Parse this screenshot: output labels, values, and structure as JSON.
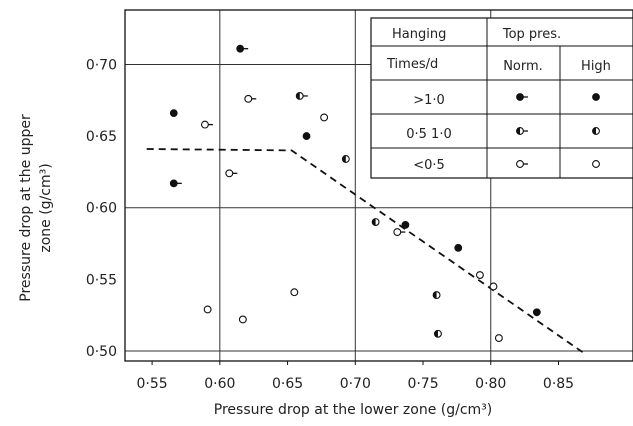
{
  "chart_data": {
    "type": "scatter",
    "title": "",
    "xlabel": "Pressure drop at the lower zone  (g/cm³)",
    "ylabel_line1": "Pressure drop at the upper",
    "ylabel_line2": "zone  (g/cm³)",
    "xlim": [
      0.53,
      0.905
    ],
    "ylim": [
      0.493,
      0.738
    ],
    "xticks": [
      {
        "v": 0.55,
        "label": "0·55"
      },
      {
        "v": 0.6,
        "label": "0·60"
      },
      {
        "v": 0.65,
        "label": "0·65"
      },
      {
        "v": 0.7,
        "label": "0·70"
      },
      {
        "v": 0.75,
        "label": "0·75"
      },
      {
        "v": 0.8,
        "label": "0·80"
      },
      {
        "v": 0.85,
        "label": "0·85"
      }
    ],
    "yticks": [
      {
        "v": 0.5,
        "label": "0·50"
      },
      {
        "v": 0.55,
        "label": "0·55"
      },
      {
        "v": 0.6,
        "label": "0·60"
      },
      {
        "v": 0.65,
        "label": "0·65"
      },
      {
        "v": 0.7,
        "label": "0·70"
      }
    ],
    "gridlines_y": [
      0.7,
      0.6,
      0.5
    ],
    "gridlines_x": [
      0.6,
      0.7,
      0.8
    ],
    "legend": {
      "header_left": "Hanging",
      "header_right": "Top  pres.",
      "subheader_left": "Times/d",
      "col_norm": "Norm.",
      "col_high": "High",
      "rows": [
        {
          "label": ">1·0",
          "norm": "filled-tick",
          "high": "filled"
        },
        {
          "label": "0·5  1·0",
          "norm": "half-tick",
          "high": "half"
        },
        {
          "label": "<0·5",
          "norm": "open-tick",
          "high": "open"
        }
      ]
    },
    "points": [
      {
        "x": 0.566,
        "y": 0.666,
        "m": "filled"
      },
      {
        "x": 0.566,
        "y": 0.617,
        "m": "filled-tick"
      },
      {
        "x": 0.589,
        "y": 0.658,
        "m": "open-tick"
      },
      {
        "x": 0.591,
        "y": 0.529,
        "m": "open"
      },
      {
        "x": 0.607,
        "y": 0.624,
        "m": "open-tick"
      },
      {
        "x": 0.615,
        "y": 0.711,
        "m": "filled-tick"
      },
      {
        "x": 0.617,
        "y": 0.522,
        "m": "open"
      },
      {
        "x": 0.621,
        "y": 0.676,
        "m": "open-tick"
      },
      {
        "x": 0.655,
        "y": 0.541,
        "m": "open"
      },
      {
        "x": 0.659,
        "y": 0.678,
        "m": "half-tick"
      },
      {
        "x": 0.664,
        "y": 0.65,
        "m": "filled"
      },
      {
        "x": 0.677,
        "y": 0.663,
        "m": "open"
      },
      {
        "x": 0.693,
        "y": 0.634,
        "m": "half"
      },
      {
        "x": 0.715,
        "y": 0.59,
        "m": "half"
      },
      {
        "x": 0.731,
        "y": 0.583,
        "m": "open-tick"
      },
      {
        "x": 0.737,
        "y": 0.588,
        "m": "filled"
      },
      {
        "x": 0.76,
        "y": 0.539,
        "m": "half"
      },
      {
        "x": 0.761,
        "y": 0.512,
        "m": "half"
      },
      {
        "x": 0.776,
        "y": 0.572,
        "m": "filled"
      },
      {
        "x": 0.792,
        "y": 0.553,
        "m": "open"
      },
      {
        "x": 0.802,
        "y": 0.545,
        "m": "open"
      },
      {
        "x": 0.806,
        "y": 0.509,
        "m": "open"
      },
      {
        "x": 0.834,
        "y": 0.527,
        "m": "filled"
      }
    ],
    "trend_line": [
      [
        0.546,
        0.641
      ],
      [
        0.653,
        0.64
      ],
      [
        0.868,
        0.499
      ]
    ]
  }
}
